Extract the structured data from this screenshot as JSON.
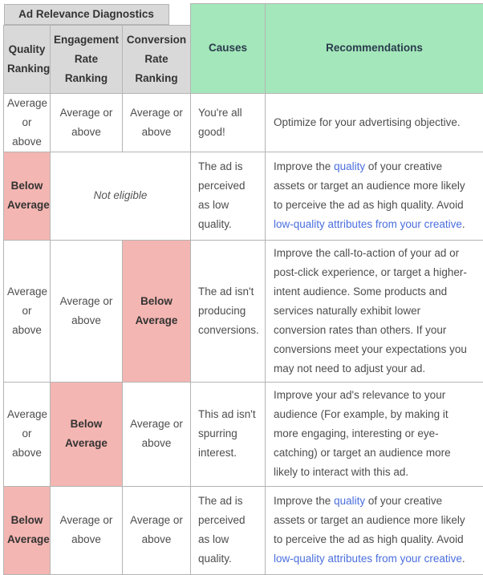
{
  "table": {
    "title": "Ad Relevance Diagnostics",
    "headers": {
      "quality": "Quality Ranking",
      "engagement": "Engagement Rate Ranking",
      "conversion": "Conversion Rate Ranking",
      "causes": "Causes",
      "recommendations": "Recommendations"
    },
    "colors": {
      "header_gray": "#d9d9d9",
      "header_green": "#a4e7ba",
      "below_average_pink": "#f4b6b2",
      "link_blue": "#4a6ede"
    },
    "rows": [
      {
        "quality": {
          "text": "Average or above",
          "below": false
        },
        "engagement": {
          "text": "Average or above",
          "below": false
        },
        "conversion": {
          "text": "Average or above",
          "below": false
        },
        "cause": "You're all good!",
        "recommendation": [
          {
            "text": "Optimize for your advertising objective."
          }
        ]
      },
      {
        "quality": {
          "text": "Below Average",
          "below": true
        },
        "not_eligible": "Not eligible",
        "cause": "The ad is perceived as low quality.",
        "recommendation": [
          {
            "text": "Improve the "
          },
          {
            "text": "quality",
            "link": true
          },
          {
            "text": " of your creative assets or target an audience more likely to perceive the ad as high quality. Avoid "
          },
          {
            "text": "low-quality attributes from your creative",
            "link": true
          },
          {
            "text": "."
          }
        ]
      },
      {
        "quality": {
          "text": "Average or above",
          "below": false
        },
        "engagement": {
          "text": "Average or above",
          "below": false
        },
        "conversion": {
          "text": "Below Average",
          "below": true
        },
        "cause": "The ad isn't producing conversions.",
        "recommendation": [
          {
            "text": "Improve the call-to-action of your ad or post-click experience, or target a higher-intent audience. Some products and services naturally exhibit lower conversion rates than others. If your conversions meet your expectations you may not need to adjust your ad."
          }
        ]
      },
      {
        "quality": {
          "text": "Average or above",
          "below": false
        },
        "engagement": {
          "text": "Below Average",
          "below": true
        },
        "conversion": {
          "text": "Average or above",
          "below": false
        },
        "cause": "This ad isn't spurring interest.",
        "recommendation": [
          {
            "text": "Improve your ad's relevance to your audience (For example, by making it more engaging, interesting or eye-catching) or target an audience more likely to interact with this ad."
          }
        ]
      },
      {
        "quality": {
          "text": "Below Average",
          "below": true
        },
        "engagement": {
          "text": "Average or above",
          "below": false
        },
        "conversion": {
          "text": "Average or above",
          "below": false
        },
        "cause": "The ad is perceived as low quality.",
        "recommendation": [
          {
            "text": "Improve the "
          },
          {
            "text": "quality",
            "link": true
          },
          {
            "text": " of your creative assets or target an audience more likely to perceive the ad as high quality. Avoid "
          },
          {
            "text": "low-quality attributes from your creative",
            "link": true
          },
          {
            "text": "."
          }
        ]
      }
    ]
  }
}
